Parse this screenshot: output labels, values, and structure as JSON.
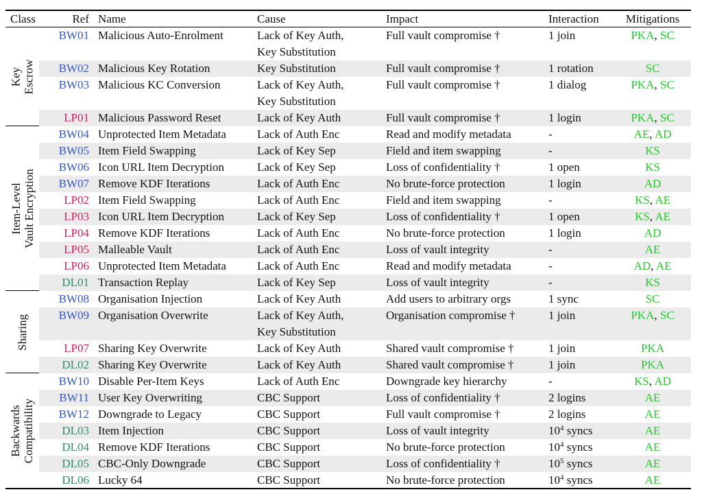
{
  "colors": {
    "bw_ref": "#3557bf",
    "lp_ref": "#c5265f",
    "dl_ref": "#2e8b6c",
    "mitigation": "#2bc32f",
    "row_shade": "#ebebeb",
    "rule": "#000000"
  },
  "table": {
    "columns": [
      "Class",
      "Ref",
      "Name",
      "Cause",
      "Impact",
      "Interaction",
      "Mitigations"
    ],
    "groups": [
      {
        "label_lines": [
          "Key",
          "Escrow"
        ],
        "rows": [
          {
            "ref": "BW01",
            "name": "Malicious Auto-Enrolment",
            "cause_lines": [
              "Lack of Key Auth,",
              "Key Substitution"
            ],
            "impact": "Full vault compromise †",
            "interaction": "1 join",
            "mitigations": [
              "PKA",
              "SC"
            ]
          },
          {
            "ref": "BW02",
            "name": "Malicious Key Rotation",
            "cause_lines": [
              "Key Substitution"
            ],
            "impact": "Full vault compromise †",
            "interaction": "1 rotation",
            "mitigations": [
              "SC"
            ]
          },
          {
            "ref": "BW03",
            "name": "Malicious KC Conversion",
            "cause_lines": [
              "Lack of Key Auth,",
              "Key Substitution"
            ],
            "impact": "Full vault compromise †",
            "interaction": "1 dialog",
            "mitigations": [
              "PKA",
              "SC"
            ]
          },
          {
            "ref": "LP01",
            "name": "Malicious Password Reset",
            "cause_lines": [
              "Lack of Key Auth"
            ],
            "impact": "Full vault compromise †",
            "interaction": "1 login",
            "mitigations": [
              "PKA",
              "SC"
            ]
          }
        ]
      },
      {
        "label_lines": [
          "Item-Level",
          "Vault Encryption"
        ],
        "rows": [
          {
            "ref": "BW04",
            "name": "Unprotected Item Metadata",
            "cause_lines": [
              "Lack of Auth Enc"
            ],
            "impact": "Read and modify metadata",
            "interaction": "-",
            "mitigations": [
              "AE",
              "AD"
            ]
          },
          {
            "ref": "BW05",
            "name": "Item Field Swapping",
            "cause_lines": [
              "Lack of Key Sep"
            ],
            "impact": "Field and item swapping",
            "interaction": "-",
            "mitigations": [
              "KS"
            ]
          },
          {
            "ref": "BW06",
            "name": "Icon URL Item Decryption",
            "cause_lines": [
              "Lack of Key Sep"
            ],
            "impact": "Loss of confidentiality †",
            "interaction": "1 open",
            "mitigations": [
              "KS"
            ]
          },
          {
            "ref": "BW07",
            "name": "Remove KDF Iterations",
            "cause_lines": [
              "Lack of Auth Enc"
            ],
            "impact": "No brute-force protection",
            "interaction": "1 login",
            "mitigations": [
              "AD"
            ]
          },
          {
            "ref": "LP02",
            "name": "Item Field Swapping",
            "cause_lines": [
              "Lack of Auth Enc"
            ],
            "impact": "Field and item swapping",
            "interaction": "-",
            "mitigations": [
              "KS",
              "AE"
            ]
          },
          {
            "ref": "LP03",
            "name": "Icon URL Item Decryption",
            "cause_lines": [
              "Lack of Key Sep"
            ],
            "impact": "Loss of confidentiality †",
            "interaction": "1 open",
            "mitigations": [
              "KS",
              "AE"
            ]
          },
          {
            "ref": "LP04",
            "name": "Remove KDF Iterations",
            "cause_lines": [
              "Lack of Auth Enc"
            ],
            "impact": "No brute-force protection",
            "interaction": "1 login",
            "mitigations": [
              "AD"
            ]
          },
          {
            "ref": "LP05",
            "name": "Malleable Vault",
            "cause_lines": [
              "Lack of Auth Enc"
            ],
            "impact": "Loss of vault integrity",
            "interaction": "-",
            "mitigations": [
              "AE"
            ]
          },
          {
            "ref": "LP06",
            "name": "Unprotected Item Metadata",
            "cause_lines": [
              "Lack of Auth Enc"
            ],
            "impact": "Read and modify metadata",
            "interaction": "-",
            "mitigations": [
              "AD",
              "AE"
            ]
          },
          {
            "ref": "DL01",
            "name": "Transaction Replay",
            "cause_lines": [
              "Lack of Key Sep"
            ],
            "impact": "Loss of vault integrity",
            "interaction": "-",
            "mitigations": [
              "KS"
            ]
          }
        ]
      },
      {
        "label_lines": [
          "Sharing"
        ],
        "rows": [
          {
            "ref": "BW08",
            "name": "Organisation Injection",
            "cause_lines": [
              "Lack of Key Auth"
            ],
            "impact": "Add users to arbitrary orgs",
            "interaction": "1 sync",
            "mitigations": [
              "SC"
            ]
          },
          {
            "ref": "BW09",
            "name": "Organisation Overwrite",
            "cause_lines": [
              "Lack of Key Auth,",
              "Key Substitution"
            ],
            "impact": "Organisation compromise †",
            "interaction": "1 join",
            "mitigations": [
              "PKA",
              "SC"
            ]
          },
          {
            "ref": "LP07",
            "name": "Sharing Key Overwrite",
            "cause_lines": [
              "Lack of Key Auth"
            ],
            "impact": "Shared vault compromise †",
            "interaction": "1 join",
            "mitigations": [
              "PKA"
            ]
          },
          {
            "ref": "DL02",
            "name": "Sharing Key Overwrite",
            "cause_lines": [
              "Lack of Key Auth"
            ],
            "impact": "Shared vault compromise †",
            "interaction": "1 join",
            "mitigations": [
              "PKA"
            ]
          }
        ]
      },
      {
        "label_lines": [
          "Backwards",
          "Compatibility"
        ],
        "rows": [
          {
            "ref": "BW10",
            "name": "Disable Per-Item Keys",
            "cause_lines": [
              "Lack of Auth Enc"
            ],
            "impact": "Downgrade key hierarchy",
            "interaction": "-",
            "mitigations": [
              "KS",
              "AD"
            ]
          },
          {
            "ref": "BW11",
            "name": "User Key Overwriting",
            "cause_lines": [
              "CBC Support"
            ],
            "impact": "Loss of confidentiality †",
            "interaction": "2 logins",
            "mitigations": [
              "AE"
            ]
          },
          {
            "ref": "BW12",
            "name": "Downgrade to Legacy",
            "cause_lines": [
              "CBC Support"
            ],
            "impact": "Full vault compromise †",
            "interaction": "2 logins",
            "mitigations": [
              "AE"
            ]
          },
          {
            "ref": "DL03",
            "name": "Item Injection",
            "cause_lines": [
              "CBC Support"
            ],
            "impact": "Loss of vault integrity",
            "interaction": "10^4 syncs",
            "mitigations": [
              "AE"
            ]
          },
          {
            "ref": "DL04",
            "name": "Remove KDF Iterations",
            "cause_lines": [
              "CBC Support"
            ],
            "impact": "No brute-force protection",
            "interaction": "10^4 syncs",
            "mitigations": [
              "AE"
            ]
          },
          {
            "ref": "DL05",
            "name": "CBC-Only Downgrade",
            "cause_lines": [
              "CBC Support"
            ],
            "impact": "Loss of confidentiality †",
            "interaction": "10^5 syncs",
            "mitigations": [
              "AE"
            ]
          },
          {
            "ref": "DL06",
            "name": "Lucky 64",
            "cause_lines": [
              "CBC Support"
            ],
            "impact": "No brute-force protection",
            "interaction": "10^4 syncs",
            "mitigations": [
              "AE"
            ]
          }
        ]
      }
    ]
  }
}
